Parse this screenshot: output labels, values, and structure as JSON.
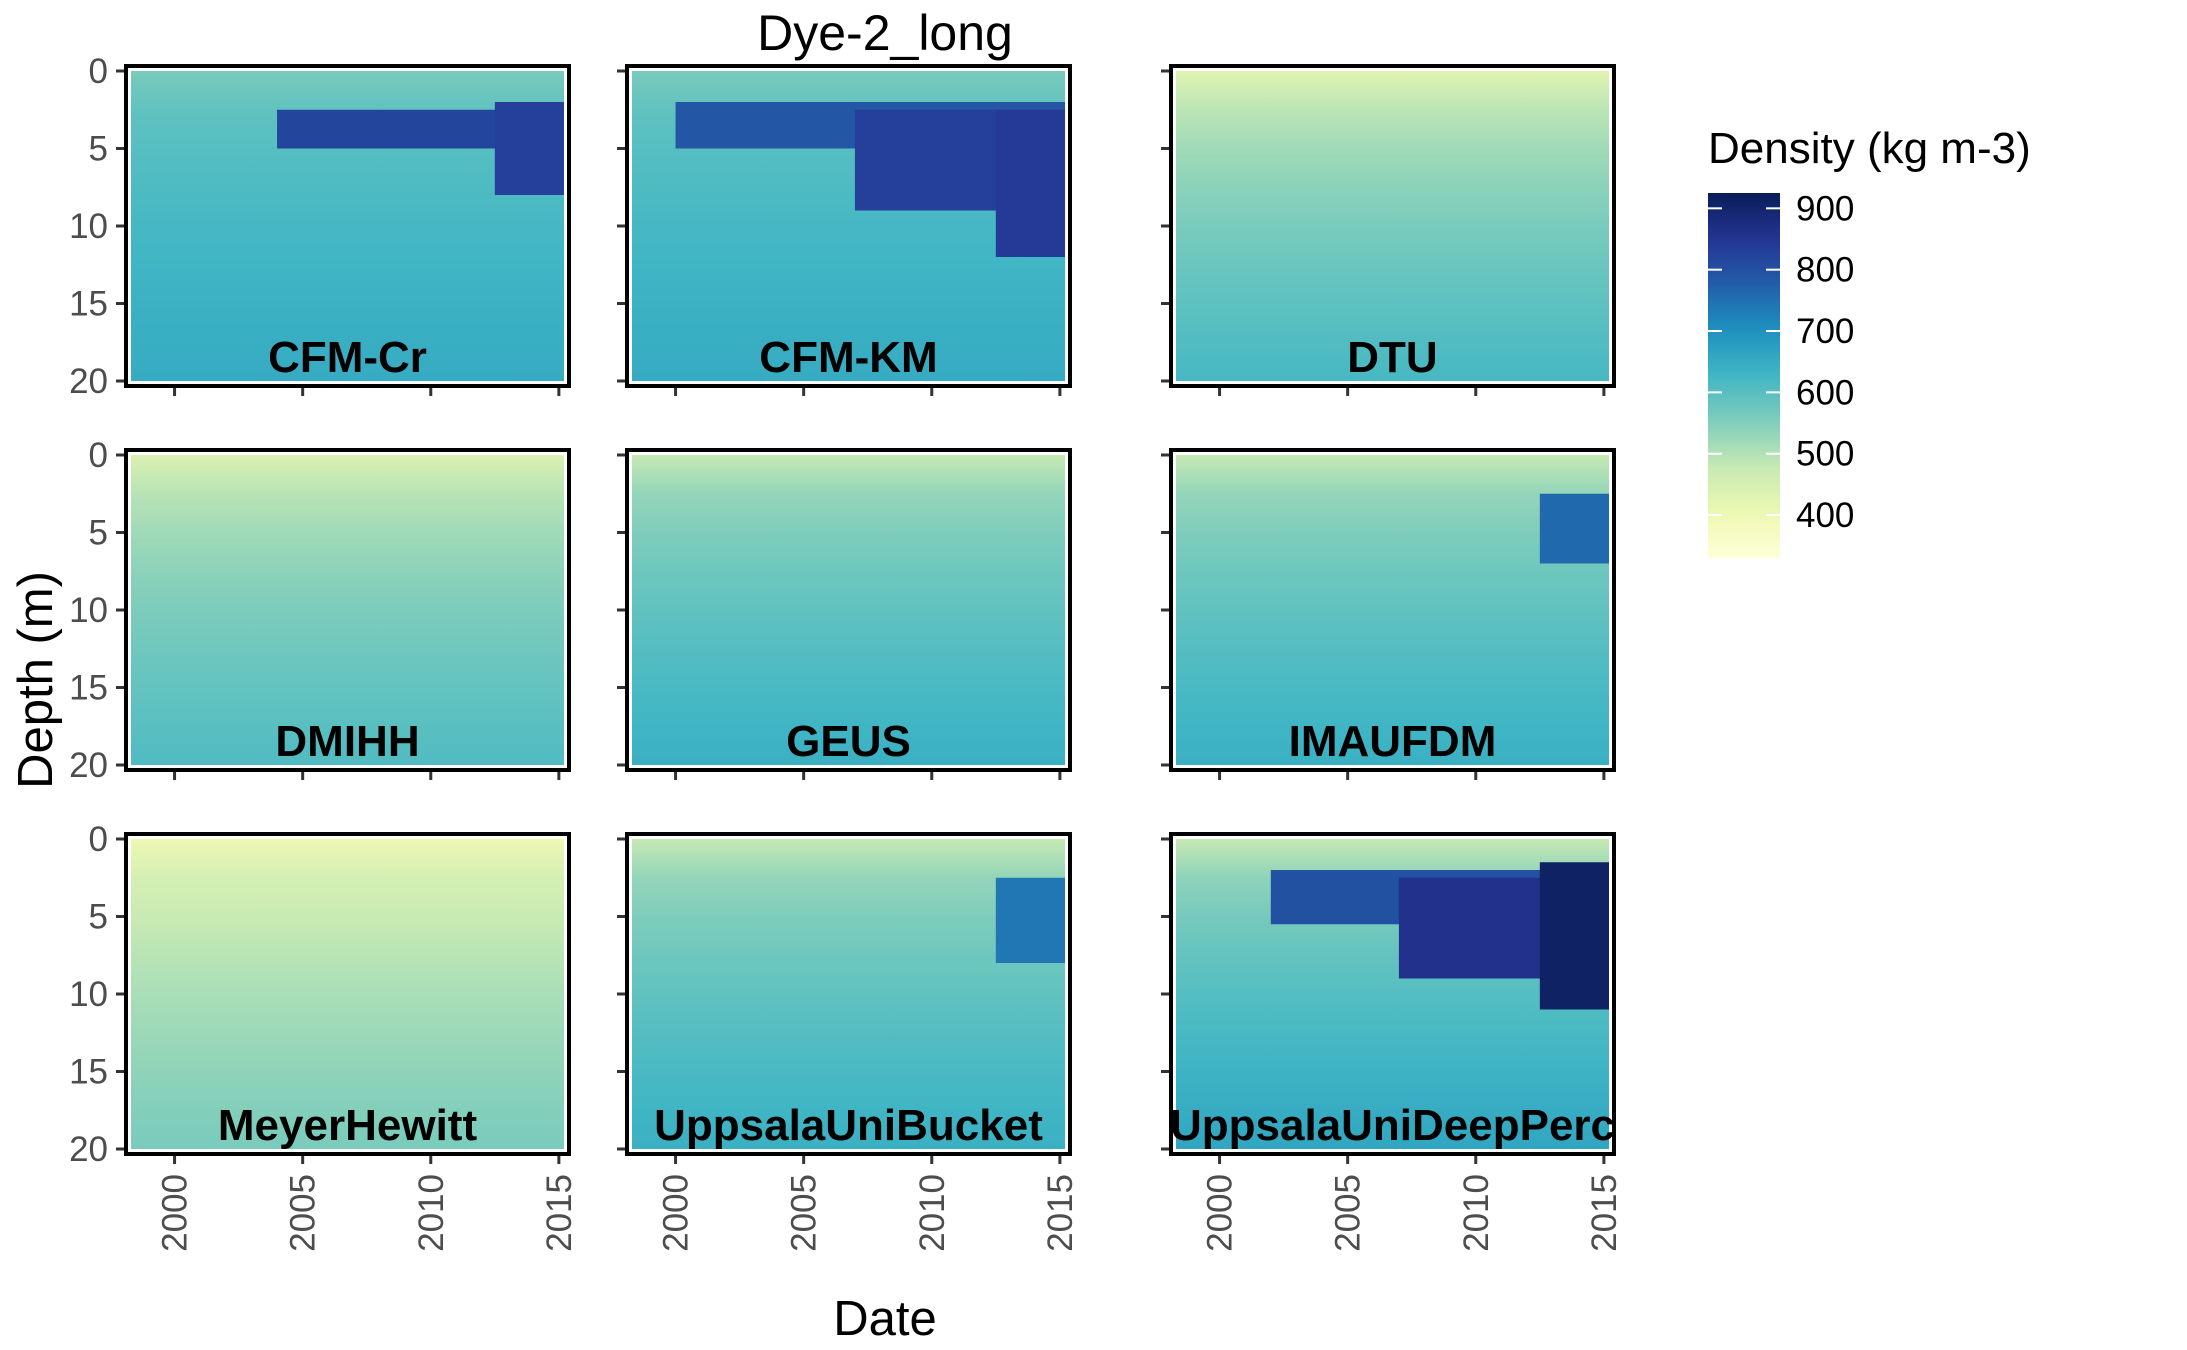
{
  "chart_data": {
    "type": "heatmap",
    "title": "Dye-2_long",
    "xlabel": "Date",
    "ylabel": "Depth (m)",
    "x_ticks": [
      "2000",
      "2005",
      "2010",
      "2015"
    ],
    "x_tick_values": [
      2000,
      2005,
      2010,
      2015
    ],
    "xlim": [
      1998.3,
      2015.2
    ],
    "y_ticks": [
      "0",
      "5",
      "10",
      "15",
      "20"
    ],
    "y_tick_values": [
      0,
      5,
      10,
      15,
      20
    ],
    "ylim": [
      0,
      20
    ],
    "y_reversed": true,
    "legend": {
      "title": "Density (kg m-3)",
      "ticks": [
        "900",
        "800",
        "700",
        "600",
        "500",
        "400"
      ],
      "tick_values": [
        900,
        800,
        700,
        600,
        500,
        400
      ],
      "range": [
        330,
        925
      ],
      "placement": "right",
      "colors": [
        "#ffffd9",
        "#edf8b1",
        "#c7e9b4",
        "#7fcdbb",
        "#41b6c4",
        "#1d91c0",
        "#225ea8",
        "#253494",
        "#081d58"
      ]
    },
    "panels": [
      {
        "name": "CFM-Cr",
        "surface": 560,
        "deep": 650,
        "bands": [
          {
            "start": 2004,
            "top": 2.5,
            "bottom": 5.0,
            "value": 820
          },
          {
            "start": 2012.5,
            "top": 2.0,
            "bottom": 8.0,
            "value": 830
          }
        ]
      },
      {
        "name": "CFM-KM",
        "surface": 560,
        "deep": 650,
        "bands": [
          {
            "start": 2000,
            "top": 2.0,
            "bottom": 5.0,
            "value": 790
          },
          {
            "start": 2007,
            "top": 2.5,
            "bottom": 9.0,
            "value": 830
          },
          {
            "start": 2012.5,
            "top": 2.5,
            "bottom": 12.0,
            "value": 840
          }
        ]
      },
      {
        "name": "DTU",
        "surface": 430,
        "deep": 620,
        "bands": []
      },
      {
        "name": "DMIHH",
        "surface": 440,
        "deep": 610,
        "bands": []
      },
      {
        "name": "GEUS",
        "surface": 480,
        "deep": 640,
        "bands": []
      },
      {
        "name": "IMAUFDM",
        "surface": 480,
        "deep": 640,
        "bands": [
          {
            "start": 2012.5,
            "top": 2.5,
            "bottom": 7.0,
            "value": 760
          }
        ]
      },
      {
        "name": "MeyerHewitt",
        "surface": 400,
        "deep": 560,
        "bands": []
      },
      {
        "name": "UppsalaUniBucket",
        "surface": 480,
        "deep": 640,
        "bands": [
          {
            "start": 2012.5,
            "top": 2.5,
            "bottom": 8.0,
            "value": 740
          }
        ]
      },
      {
        "name": "UppsalaUniDeepPerc",
        "surface": 480,
        "deep": 660,
        "bands": [
          {
            "start": 2002,
            "top": 2.0,
            "bottom": 5.5,
            "value": 800
          },
          {
            "start": 2007,
            "top": 2.5,
            "bottom": 9.0,
            "value": 860
          },
          {
            "start": 2012.5,
            "top": 1.5,
            "bottom": 11.0,
            "value": 910
          }
        ]
      }
    ]
  }
}
